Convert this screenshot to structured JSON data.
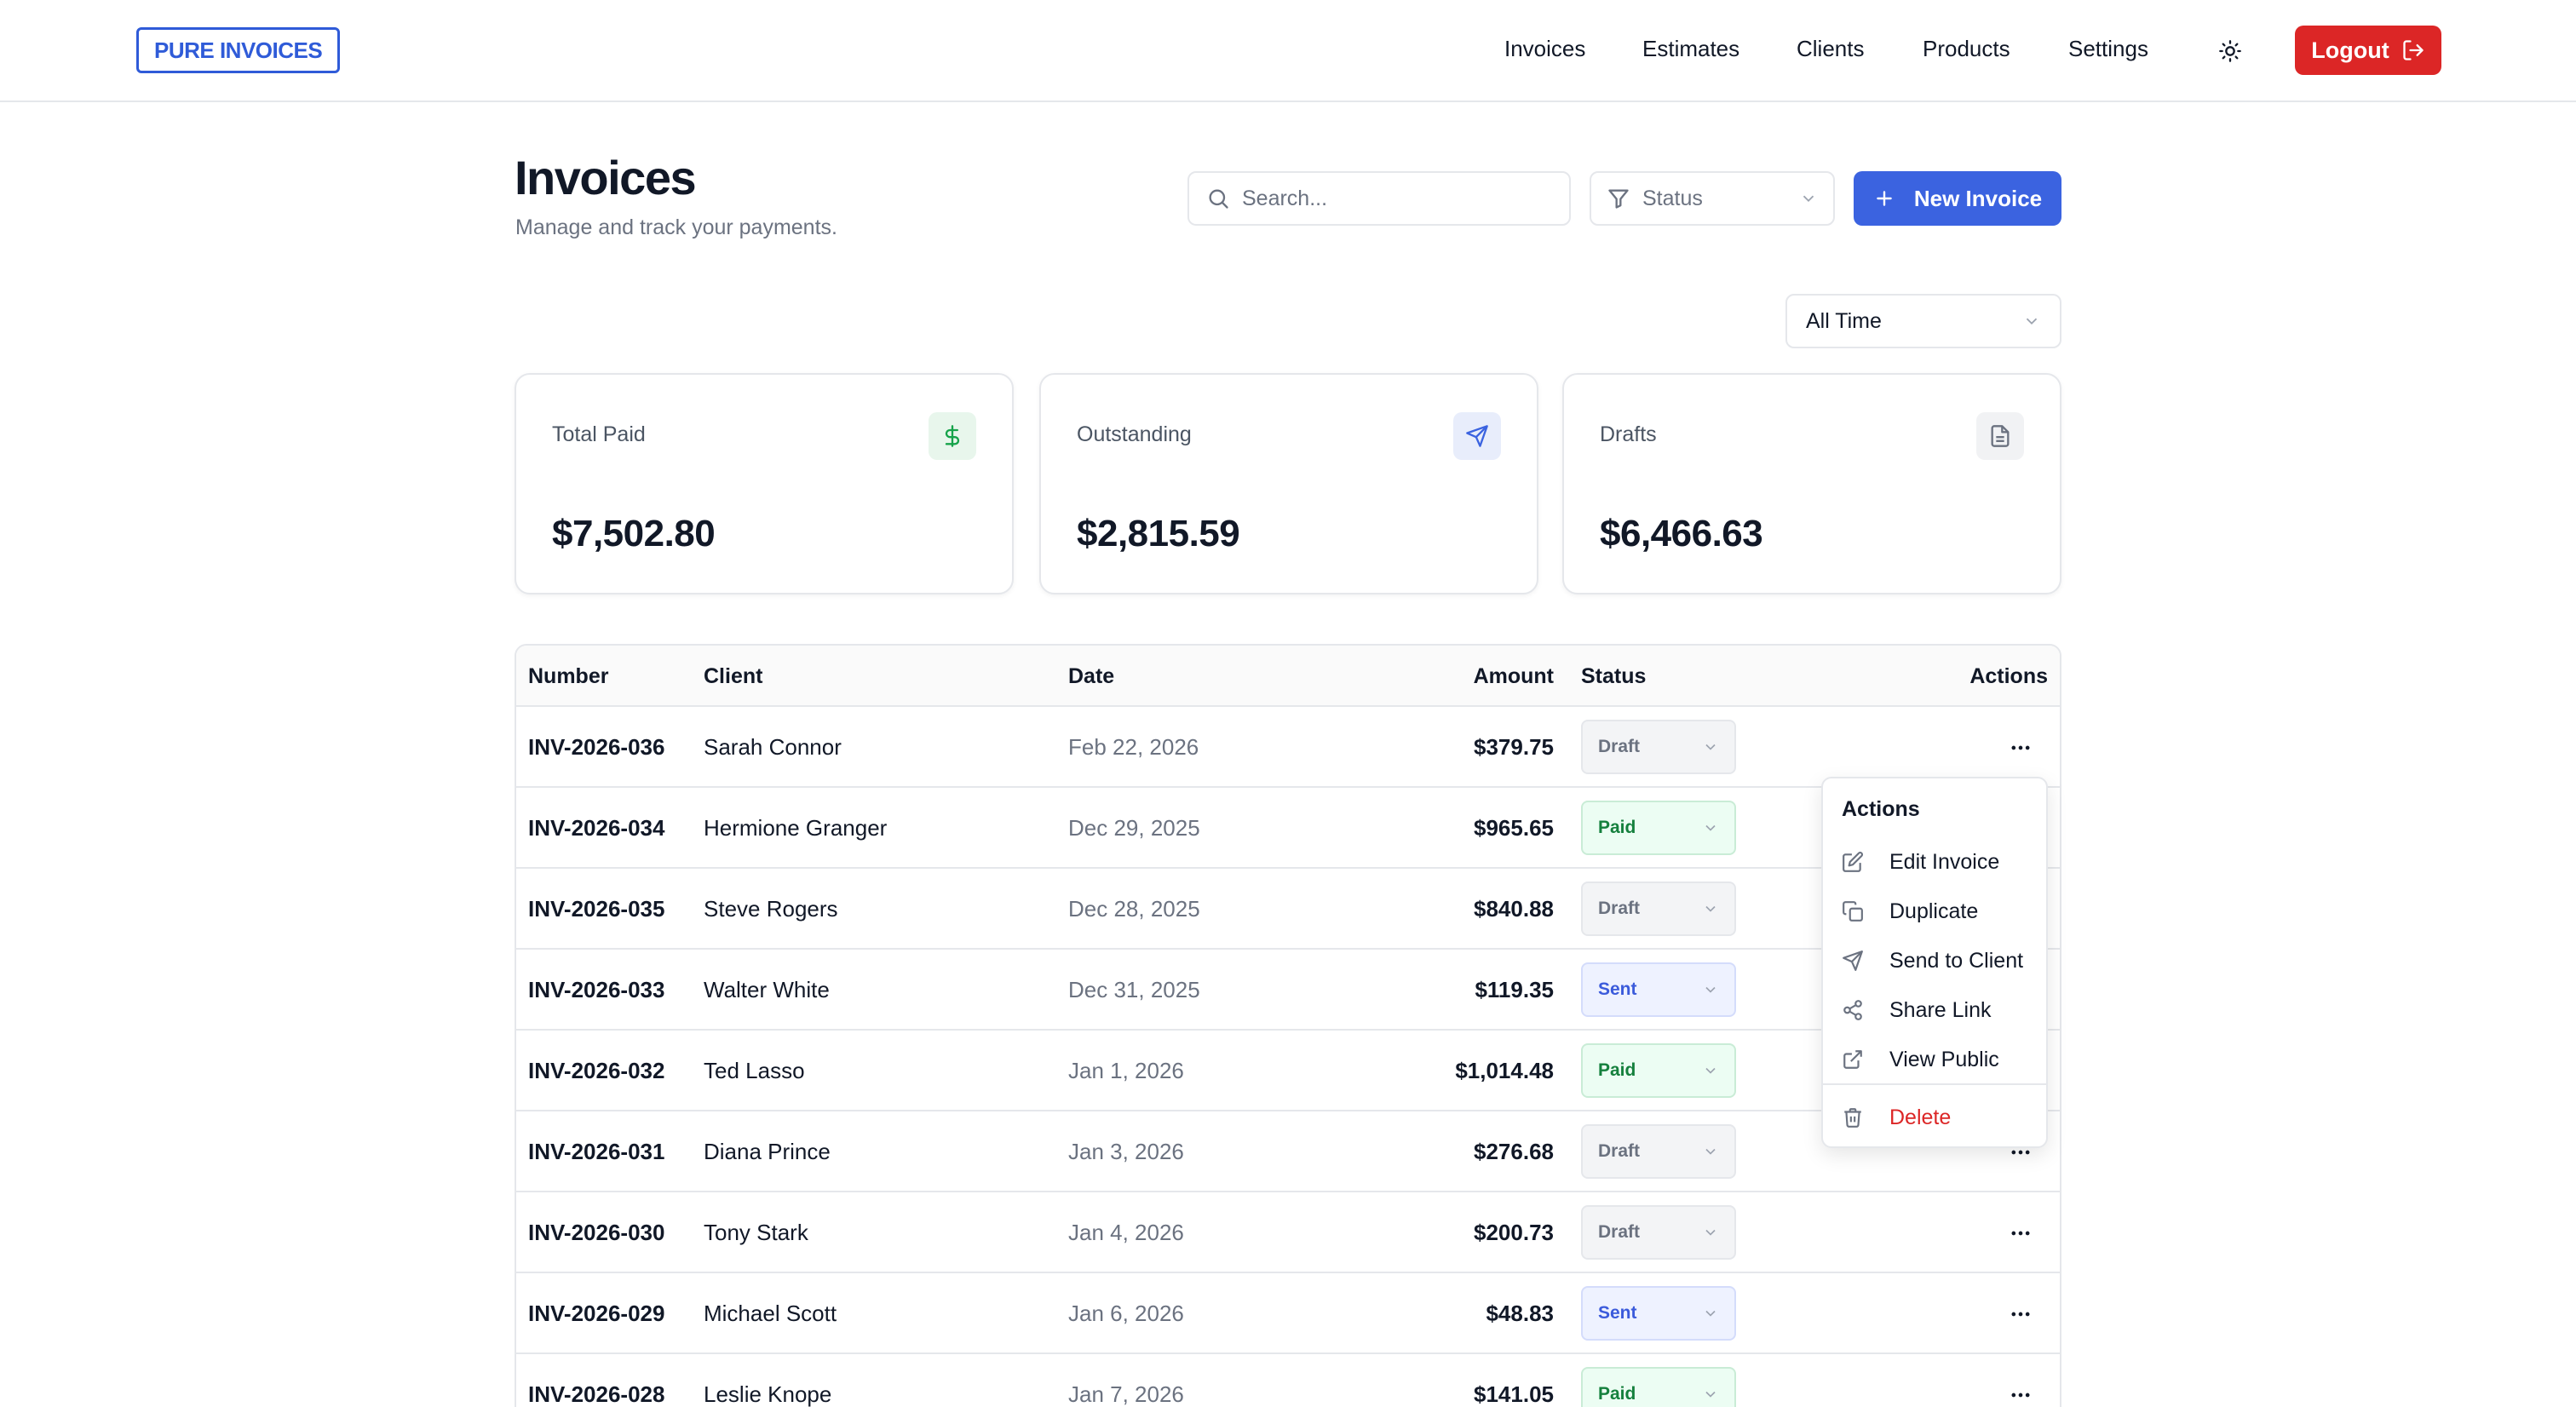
{
  "brand": {
    "logo_text": "PURE INVOICES"
  },
  "nav": {
    "invoices": "Invoices",
    "estimates": "Estimates",
    "clients": "Clients",
    "products": "Products",
    "settings": "Settings",
    "logout": "Logout"
  },
  "header": {
    "title": "Invoices",
    "subtitle": "Manage and track your payments.",
    "search_placeholder": "Search...",
    "status_filter": "Status",
    "new_button": "New Invoice",
    "time_filter": "All Time"
  },
  "stats": {
    "total_paid": {
      "label": "Total Paid",
      "value": "$7,502.80",
      "icon": "dollar-icon",
      "color": "#16a34a"
    },
    "outstanding": {
      "label": "Outstanding",
      "value": "$2,815.59",
      "icon": "send-icon",
      "color": "#3b63e0"
    },
    "drafts": {
      "label": "Drafts",
      "value": "$6,466.63",
      "icon": "document-icon",
      "color": "#6b7280"
    }
  },
  "table": {
    "columns": {
      "number": "Number",
      "client": "Client",
      "date": "Date",
      "amount": "Amount",
      "status": "Status",
      "actions": "Actions"
    },
    "rows": [
      {
        "number": "INV-2026-036",
        "client": "Sarah Connor",
        "date": "Feb 22, 2026",
        "amount": "$379.75",
        "status": "Draft"
      },
      {
        "number": "INV-2026-034",
        "client": "Hermione Granger",
        "date": "Dec 29, 2025",
        "amount": "$965.65",
        "status": "Paid"
      },
      {
        "number": "INV-2026-035",
        "client": "Steve Rogers",
        "date": "Dec 28, 2025",
        "amount": "$840.88",
        "status": "Draft"
      },
      {
        "number": "INV-2026-033",
        "client": "Walter White",
        "date": "Dec 31, 2025",
        "amount": "$119.35",
        "status": "Sent"
      },
      {
        "number": "INV-2026-032",
        "client": "Ted Lasso",
        "date": "Jan 1, 2026",
        "amount": "$1,014.48",
        "status": "Paid"
      },
      {
        "number": "INV-2026-031",
        "client": "Diana Prince",
        "date": "Jan 3, 2026",
        "amount": "$276.68",
        "status": "Draft"
      },
      {
        "number": "INV-2026-030",
        "client": "Tony Stark",
        "date": "Jan 4, 2026",
        "amount": "$200.73",
        "status": "Draft"
      },
      {
        "number": "INV-2026-029",
        "client": "Michael Scott",
        "date": "Jan 6, 2026",
        "amount": "$48.83",
        "status": "Sent"
      },
      {
        "number": "INV-2026-028",
        "client": "Leslie Knope",
        "date": "Jan 7, 2026",
        "amount": "$141.05",
        "status": "Paid"
      }
    ]
  },
  "actions_menu": {
    "title": "Actions",
    "items": [
      {
        "label": "Edit Invoice",
        "icon": "edit-icon"
      },
      {
        "label": "Duplicate",
        "icon": "copy-icon"
      },
      {
        "label": "Send to Client",
        "icon": "send-icon"
      },
      {
        "label": "Share Link",
        "icon": "share-icon"
      },
      {
        "label": "View Public",
        "icon": "external-link-icon"
      },
      {
        "label": "Delete",
        "icon": "trash-icon"
      }
    ]
  },
  "colors": {
    "brand": "#2f5bd8",
    "primary_button": "#3b63e0",
    "logout": "#dc2626",
    "paid": "#15803d",
    "sent": "#3b5bdb",
    "draft": "#6b7280"
  }
}
